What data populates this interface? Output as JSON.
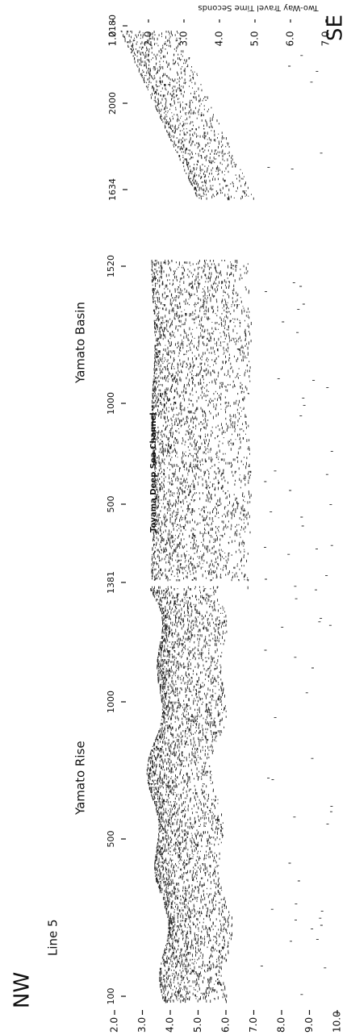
{
  "header": {
    "corner_left": "NW",
    "corner_right": "SE",
    "line": "Line 5",
    "regions": [
      "Yamato Rise",
      "Yamato Basin"
    ],
    "channel": "Toyama Deep Sea Channel",
    "axis_title": "Two-Way Travel Time Seconds"
  },
  "left_axis": [
    "2.0",
    "3.0",
    "4.0",
    "5.0",
    "6.0",
    "7.0",
    "8.0",
    "9.0",
    "10.0"
  ],
  "right_axis": [
    "1.0",
    "2.0",
    "3.0",
    "4.0",
    "5.0",
    "6.0",
    "7.0"
  ],
  "shot_points_main": [
    "100",
    "500",
    "1000",
    "1381",
    "500",
    "1000",
    "1520"
  ],
  "shot_points_se": [
    "1634",
    "2000",
    "2180"
  ]
}
